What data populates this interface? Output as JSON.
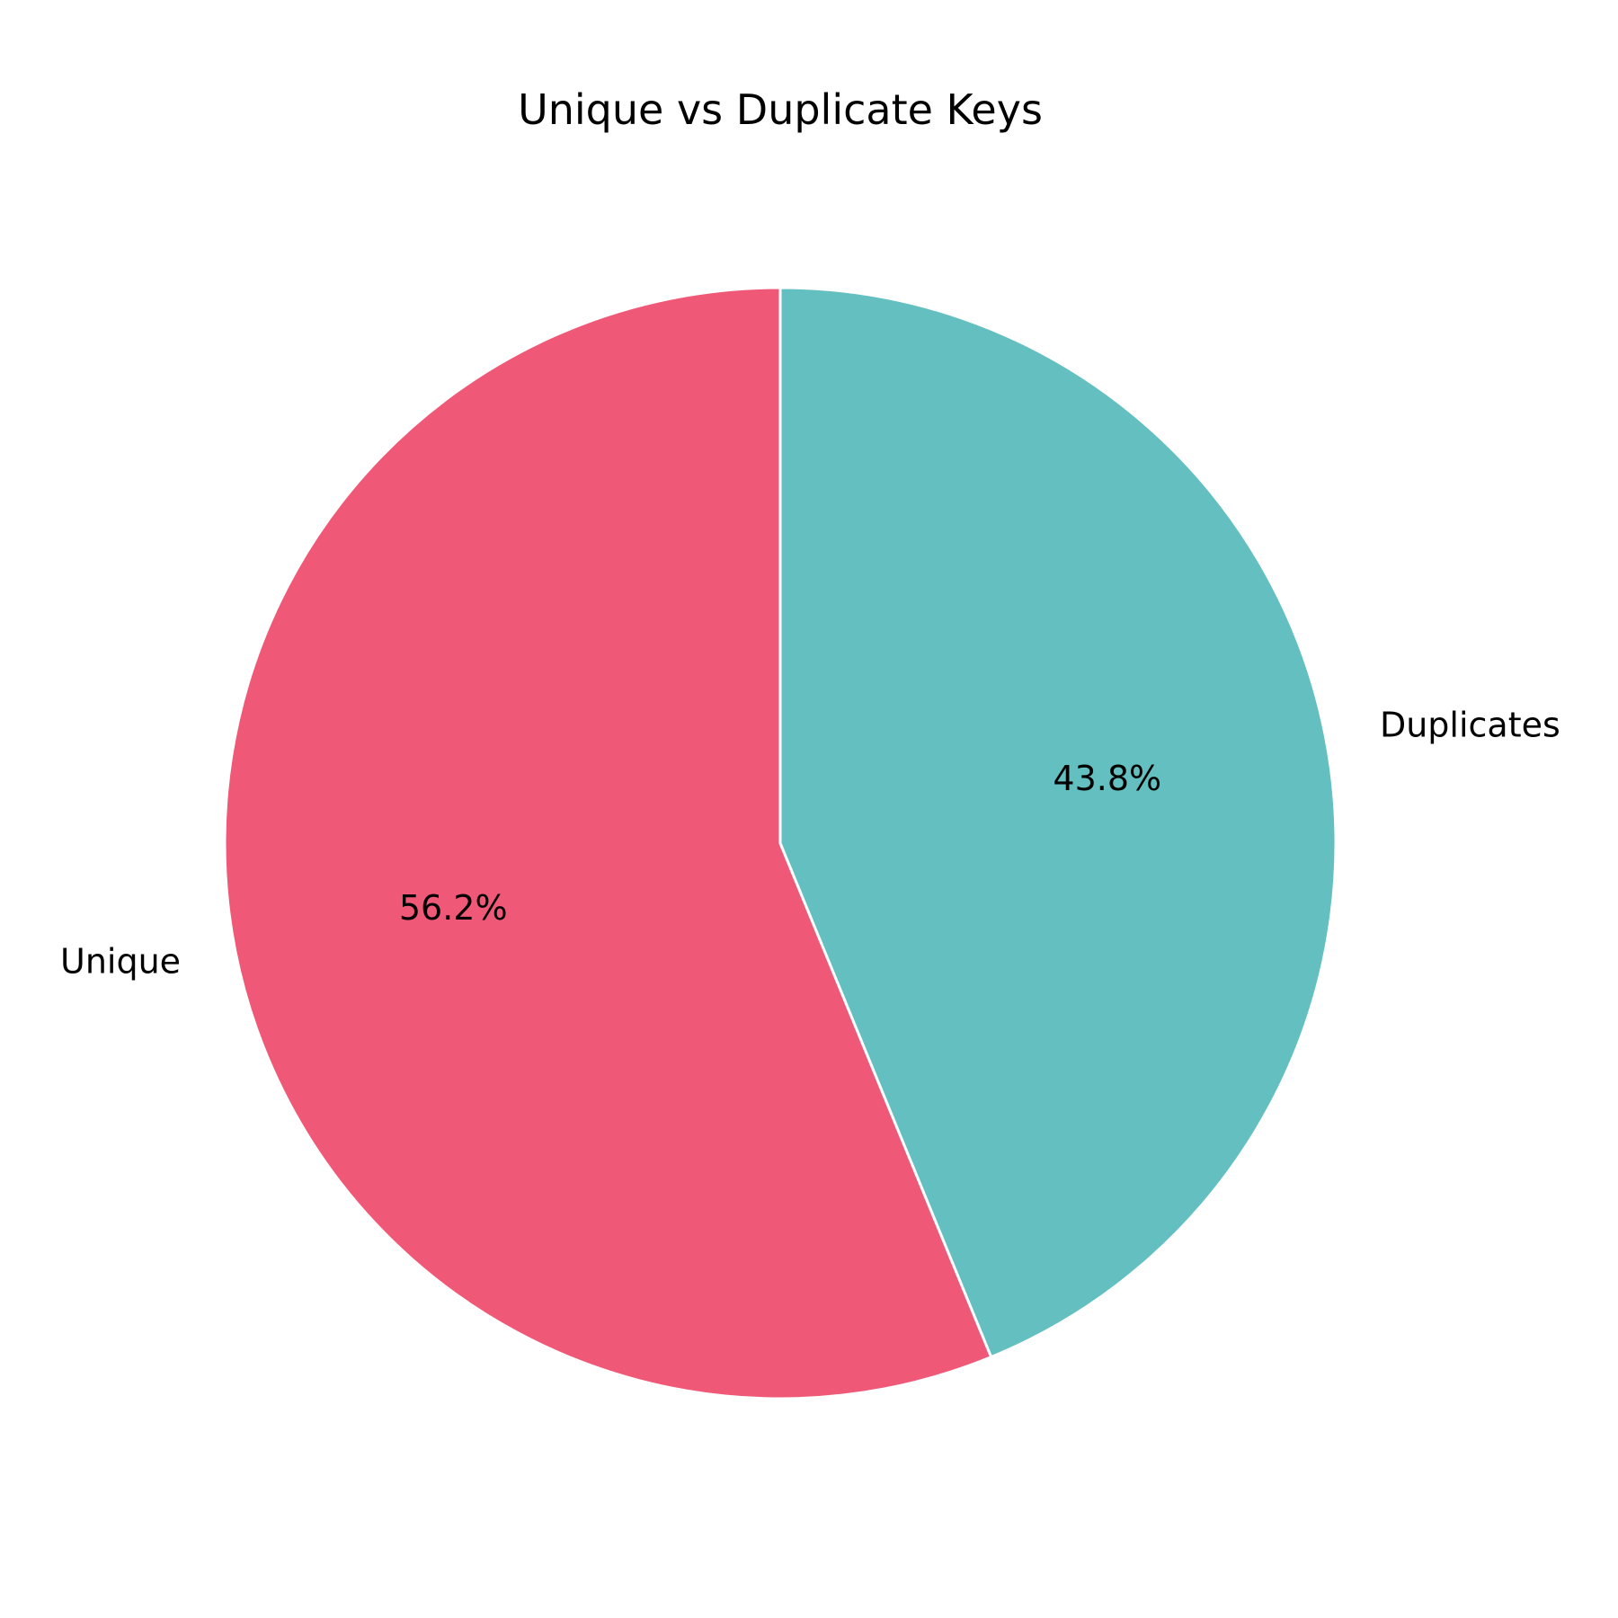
{
  "chart_data": {
    "type": "pie",
    "title": "Unique vs Duplicate Keys",
    "slices": [
      {
        "label": "Unique",
        "value": 56.2,
        "pct_label": "56.2%",
        "color": "#ef5876"
      },
      {
        "label": "Duplicates",
        "value": 43.8,
        "pct_label": "43.8%",
        "color": "#63bfc0"
      }
    ],
    "start_angle_deg": 90,
    "direction": "counterclockwise",
    "edge_color": "#ffffff"
  }
}
